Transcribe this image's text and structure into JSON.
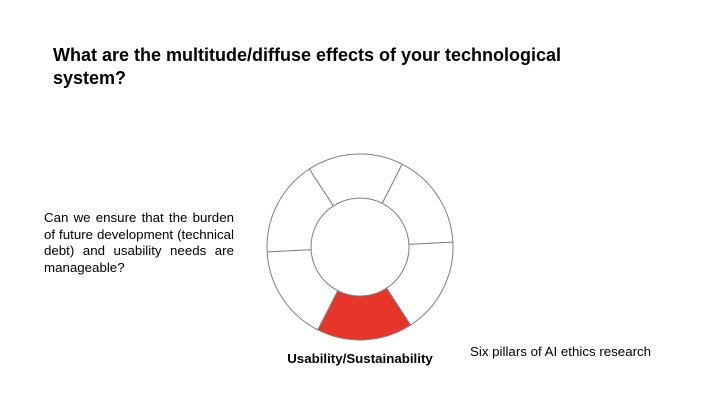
{
  "slide": {
    "title": "What are the multitude/diffuse effects of your technological system?",
    "question": "Can we ensure that the burden of future development (technical debt) and usability needs are manageable?",
    "pillar_label": "Usability/Sustainability",
    "caption": "Six pillars of AI ethics research"
  },
  "wheel": {
    "segment_count": 6,
    "highlighted_segment": "Usability/Sustainability",
    "colors": {
      "highlight": "#e8352a",
      "outline": "#7f7f7f",
      "fill": "#ffffff"
    }
  }
}
